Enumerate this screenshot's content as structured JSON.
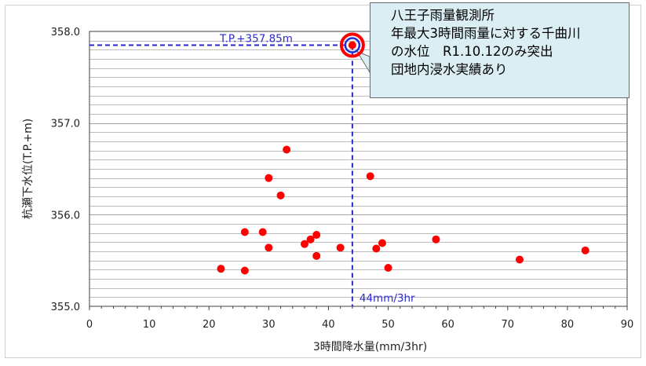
{
  "chart_data": {
    "type": "scatter",
    "xlabel": "3時間降水量(mm/3hr)",
    "ylabel": "杭瀬下水位(T.P.+m)",
    "xlim": [
      0,
      90
    ],
    "ylim": [
      355.0,
      358.0
    ],
    "x_ticks": [
      0,
      10,
      20,
      30,
      40,
      50,
      60,
      70,
      80,
      90
    ],
    "y_ticks": [
      355.0,
      356.0,
      357.0,
      358.0
    ],
    "y_tick_labels": [
      "355.0",
      "356.0",
      "357.0",
      "358.0"
    ],
    "y_minor_grid_step": 0.1,
    "grid": "horizontal",
    "points": [
      {
        "x": 22,
        "y": 355.41
      },
      {
        "x": 26,
        "y": 355.39
      },
      {
        "x": 26,
        "y": 355.81
      },
      {
        "x": 29,
        "y": 355.81
      },
      {
        "x": 30,
        "y": 356.4
      },
      {
        "x": 30,
        "y": 355.64
      },
      {
        "x": 32,
        "y": 356.21
      },
      {
        "x": 33,
        "y": 356.71
      },
      {
        "x": 36,
        "y": 355.68
      },
      {
        "x": 37,
        "y": 355.73
      },
      {
        "x": 38,
        "y": 355.78
      },
      {
        "x": 38,
        "y": 355.55
      },
      {
        "x": 42,
        "y": 355.64
      },
      {
        "x": 44,
        "y": 357.85
      },
      {
        "x": 47,
        "y": 356.42
      },
      {
        "x": 48,
        "y": 355.63
      },
      {
        "x": 49,
        "y": 355.69
      },
      {
        "x": 50,
        "y": 355.42
      },
      {
        "x": 58,
        "y": 355.73
      },
      {
        "x": 72,
        "y": 355.51
      },
      {
        "x": 83,
        "y": 355.61
      }
    ],
    "highlight": {
      "x": 44,
      "y": 357.85
    },
    "annotations": {
      "y_ref_label": "T.P.+357.85m",
      "x_ref_label": "44mm/3hr",
      "callout_lines": [
        "八王子雨量観測所",
        "年最大3時間雨量に対する千曲川",
        "の水位　R1.10.12のみ突出",
        "団地内浸水実績あり"
      ]
    },
    "colors": {
      "points": "#ff0000",
      "highlight_ring": "#ff0000",
      "highlight_inner": "#1f2fd8",
      "ref_lines": "#2a2acf",
      "grid": "#a6a6a6",
      "callout_bg": "#dbeef4"
    }
  }
}
